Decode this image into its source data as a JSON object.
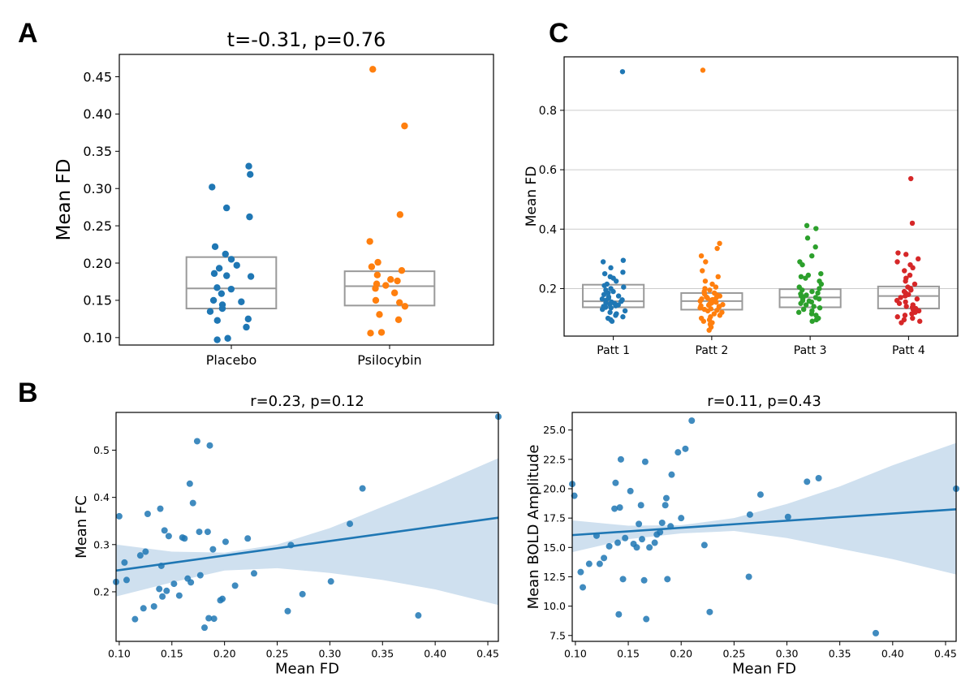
{
  "panels": {
    "A": "A",
    "B": "B",
    "C": "C"
  },
  "colors": {
    "blue": "#1f77b4",
    "orange": "#ff7f0e",
    "green": "#2ca02c",
    "red": "#d62728",
    "box": "#9a9a9a",
    "grid": "#cccccc",
    "ci_band": "#cfe0ef"
  },
  "chart_data": [
    {
      "id": "A",
      "type": "box-strip",
      "title": "t=-0.31, p=0.76",
      "xlabel": "",
      "ylabel": "Mean FD",
      "ylim": [
        0.09,
        0.48
      ],
      "yticks": [
        "0.10",
        "0.15",
        "0.20",
        "0.25",
        "0.30",
        "0.35",
        "0.40",
        "0.45"
      ],
      "categories": [
        "Placebo",
        "Psilocybin"
      ],
      "grid": false,
      "boxes": [
        {
          "q1": 0.139,
          "median": 0.166,
          "q3": 0.208
        },
        {
          "q1": 0.143,
          "median": 0.169,
          "q3": 0.189
        }
      ],
      "series": [
        {
          "values": [
            0.33,
            0.319,
            0.302,
            0.274,
            0.262,
            0.222,
            0.212,
            0.205,
            0.197,
            0.193,
            0.186,
            0.182,
            0.183,
            0.167,
            0.165,
            0.159,
            0.15,
            0.148,
            0.144,
            0.139,
            0.135,
            0.125,
            0.123,
            0.114,
            0.099,
            0.097
          ]
        },
        {
          "values": [
            0.46,
            0.384,
            0.265,
            0.229,
            0.201,
            0.195,
            0.19,
            0.184,
            0.178,
            0.176,
            0.172,
            0.17,
            0.166,
            0.16,
            0.15,
            0.147,
            0.142,
            0.131,
            0.124,
            0.107,
            0.106
          ]
        }
      ]
    },
    {
      "id": "C",
      "type": "box-strip",
      "title": "",
      "xlabel": "",
      "ylabel": "Mean FD",
      "ylim": [
        0.04,
        0.98
      ],
      "yticks": [
        "0.2",
        "0.4",
        "0.6",
        "0.8"
      ],
      "categories": [
        "Patt 1",
        "Patt 2",
        "Patt 3",
        "Patt 4"
      ],
      "grid": true,
      "boxes": [
        {
          "q1": 0.137,
          "median": 0.157,
          "q3": 0.213
        },
        {
          "q1": 0.129,
          "median": 0.158,
          "q3": 0.185
        },
        {
          "q1": 0.137,
          "median": 0.17,
          "q3": 0.198
        },
        {
          "q1": 0.133,
          "median": 0.175,
          "q3": 0.207
        }
      ],
      "series": [
        {
          "values": [
            0.93,
            0.295,
            0.29,
            0.27,
            0.255,
            0.25,
            0.24,
            0.235,
            0.225,
            0.215,
            0.21,
            0.205,
            0.2,
            0.195,
            0.19,
            0.185,
            0.18,
            0.175,
            0.172,
            0.168,
            0.165,
            0.162,
            0.16,
            0.157,
            0.155,
            0.152,
            0.15,
            0.147,
            0.145,
            0.142,
            0.14,
            0.137,
            0.135,
            0.13,
            0.125,
            0.12,
            0.115,
            0.11,
            0.105,
            0.1,
            0.095,
            0.09
          ]
        },
        {
          "values": [
            0.935,
            0.352,
            0.335,
            0.31,
            0.29,
            0.26,
            0.24,
            0.225,
            0.215,
            0.205,
            0.2,
            0.195,
            0.19,
            0.185,
            0.182,
            0.178,
            0.175,
            0.172,
            0.17,
            0.168,
            0.165,
            0.163,
            0.16,
            0.158,
            0.156,
            0.154,
            0.152,
            0.15,
            0.148,
            0.146,
            0.144,
            0.142,
            0.14,
            0.138,
            0.135,
            0.132,
            0.13,
            0.127,
            0.125,
            0.12,
            0.115,
            0.11,
            0.105,
            0.1,
            0.095,
            0.09,
            0.085,
            0.08,
            0.07,
            0.06
          ]
        },
        {
          "values": [
            0.412,
            0.402,
            0.37,
            0.34,
            0.31,
            0.29,
            0.28,
            0.25,
            0.245,
            0.24,
            0.235,
            0.225,
            0.215,
            0.205,
            0.2,
            0.195,
            0.19,
            0.185,
            0.182,
            0.178,
            0.175,
            0.172,
            0.17,
            0.167,
            0.165,
            0.16,
            0.158,
            0.155,
            0.15,
            0.145,
            0.14,
            0.135,
            0.13,
            0.125,
            0.12,
            0.115,
            0.11,
            0.1,
            0.095,
            0.09
          ]
        },
        {
          "values": [
            0.57,
            0.42,
            0.32,
            0.315,
            0.3,
            0.29,
            0.28,
            0.27,
            0.26,
            0.245,
            0.235,
            0.225,
            0.215,
            0.205,
            0.2,
            0.195,
            0.19,
            0.185,
            0.18,
            0.175,
            0.17,
            0.165,
            0.16,
            0.155,
            0.15,
            0.145,
            0.14,
            0.137,
            0.133,
            0.13,
            0.125,
            0.12,
            0.115,
            0.11,
            0.105,
            0.1,
            0.095,
            0.09,
            0.085
          ]
        }
      ]
    },
    {
      "id": "B1",
      "type": "scatter",
      "title": "r=0.23, p=0.12",
      "xlabel": "Mean FD",
      "ylabel": "Mean FC",
      "xlim": [
        0.097,
        0.46
      ],
      "ylim": [
        0.095,
        0.58
      ],
      "xticks": [
        "0.10",
        "0.15",
        "0.20",
        "0.25",
        "0.30",
        "0.35",
        "0.40",
        "0.45"
      ],
      "yticks": [
        "0.2",
        "0.3",
        "0.4",
        "0.5"
      ],
      "regression": {
        "y_at_xmin": 0.245,
        "y_at_xmax": 0.357
      },
      "ci_upper": [
        [
          0.097,
          0.3
        ],
        [
          0.15,
          0.285
        ],
        [
          0.2,
          0.283
        ],
        [
          0.25,
          0.3
        ],
        [
          0.3,
          0.335
        ],
        [
          0.35,
          0.38
        ],
        [
          0.4,
          0.425
        ],
        [
          0.46,
          0.483
        ]
      ],
      "ci_lower": [
        [
          0.097,
          0.19
        ],
        [
          0.15,
          0.22
        ],
        [
          0.2,
          0.245
        ],
        [
          0.25,
          0.25
        ],
        [
          0.3,
          0.24
        ],
        [
          0.35,
          0.225
        ],
        [
          0.4,
          0.205
        ],
        [
          0.46,
          0.172
        ]
      ],
      "points": [
        [
          0.097,
          0.221
        ],
        [
          0.1,
          0.36
        ],
        [
          0.105,
          0.262
        ],
        [
          0.107,
          0.225
        ],
        [
          0.115,
          0.142
        ],
        [
          0.12,
          0.277
        ],
        [
          0.123,
          0.165
        ],
        [
          0.125,
          0.285
        ],
        [
          0.127,
          0.365
        ],
        [
          0.133,
          0.169
        ],
        [
          0.138,
          0.206
        ],
        [
          0.139,
          0.376
        ],
        [
          0.14,
          0.255
        ],
        [
          0.141,
          0.19
        ],
        [
          0.143,
          0.33
        ],
        [
          0.145,
          0.202
        ],
        [
          0.147,
          0.318
        ],
        [
          0.152,
          0.217
        ],
        [
          0.157,
          0.192
        ],
        [
          0.16,
          0.315
        ],
        [
          0.162,
          0.313
        ],
        [
          0.165,
          0.228
        ],
        [
          0.167,
          0.429
        ],
        [
          0.168,
          0.22
        ],
        [
          0.17,
          0.388
        ],
        [
          0.174,
          0.519
        ],
        [
          0.176,
          0.327
        ],
        [
          0.177,
          0.235
        ],
        [
          0.181,
          0.124
        ],
        [
          0.184,
          0.327
        ],
        [
          0.185,
          0.144
        ],
        [
          0.186,
          0.51
        ],
        [
          0.189,
          0.29
        ],
        [
          0.19,
          0.143
        ],
        [
          0.196,
          0.182
        ],
        [
          0.198,
          0.185
        ],
        [
          0.201,
          0.306
        ],
        [
          0.21,
          0.213
        ],
        [
          0.222,
          0.313
        ],
        [
          0.228,
          0.239
        ],
        [
          0.26,
          0.159
        ],
        [
          0.263,
          0.299
        ],
        [
          0.274,
          0.195
        ],
        [
          0.301,
          0.222
        ],
        [
          0.319,
          0.344
        ],
        [
          0.331,
          0.419
        ],
        [
          0.384,
          0.15
        ],
        [
          0.46,
          0.571
        ]
      ]
    },
    {
      "id": "B2",
      "type": "scatter",
      "title": "r=0.11, p=0.43",
      "xlabel": "Mean FD",
      "ylabel": "Mean BOLD Amplitude",
      "xlim": [
        0.097,
        0.46
      ],
      "ylim": [
        7.0,
        26.5
      ],
      "xticks": [
        "0.10",
        "0.15",
        "0.20",
        "0.25",
        "0.30",
        "0.35",
        "0.40",
        "0.45"
      ],
      "yticks": [
        "7.5",
        "10.0",
        "12.5",
        "15.0",
        "17.5",
        "20.0",
        "22.5",
        "25.0"
      ],
      "regression": {
        "y_at_xmin": 16.05,
        "y_at_xmax": 18.25
      },
      "ci_upper": [
        [
          0.097,
          17.3
        ],
        [
          0.15,
          16.85
        ],
        [
          0.2,
          16.9
        ],
        [
          0.25,
          17.5
        ],
        [
          0.3,
          18.7
        ],
        [
          0.35,
          20.2
        ],
        [
          0.4,
          22.0
        ],
        [
          0.46,
          23.9
        ]
      ],
      "ci_lower": [
        [
          0.097,
          14.6
        ],
        [
          0.15,
          15.7
        ],
        [
          0.2,
          16.2
        ],
        [
          0.25,
          16.4
        ],
        [
          0.3,
          15.8
        ],
        [
          0.35,
          14.9
        ],
        [
          0.4,
          14.0
        ],
        [
          0.46,
          12.7
        ]
      ],
      "points": [
        [
          0.097,
          20.4
        ],
        [
          0.099,
          19.4
        ],
        [
          0.105,
          12.9
        ],
        [
          0.107,
          11.6
        ],
        [
          0.113,
          13.6
        ],
        [
          0.12,
          16.0
        ],
        [
          0.123,
          13.6
        ],
        [
          0.127,
          14.1
        ],
        [
          0.132,
          15.1
        ],
        [
          0.137,
          18.3
        ],
        [
          0.138,
          20.5
        ],
        [
          0.14,
          15.4
        ],
        [
          0.141,
          9.3
        ],
        [
          0.142,
          18.4
        ],
        [
          0.143,
          22.5
        ],
        [
          0.145,
          12.3
        ],
        [
          0.147,
          15.8
        ],
        [
          0.152,
          19.8
        ],
        [
          0.155,
          15.3
        ],
        [
          0.158,
          15.0
        ],
        [
          0.16,
          17.0
        ],
        [
          0.162,
          18.6
        ],
        [
          0.163,
          15.7
        ],
        [
          0.165,
          12.2
        ],
        [
          0.166,
          22.3
        ],
        [
          0.167,
          8.9
        ],
        [
          0.17,
          15.0
        ],
        [
          0.175,
          15.4
        ],
        [
          0.177,
          16.1
        ],
        [
          0.18,
          16.3
        ],
        [
          0.182,
          17.1
        ],
        [
          0.185,
          18.6
        ],
        [
          0.186,
          19.2
        ],
        [
          0.187,
          12.3
        ],
        [
          0.19,
          16.8
        ],
        [
          0.191,
          21.2
        ],
        [
          0.197,
          23.1
        ],
        [
          0.2,
          17.5
        ],
        [
          0.204,
          23.4
        ],
        [
          0.21,
          25.8
        ],
        [
          0.222,
          15.2
        ],
        [
          0.227,
          9.5
        ],
        [
          0.264,
          12.5
        ],
        [
          0.265,
          17.8
        ],
        [
          0.275,
          19.5
        ],
        [
          0.301,
          17.6
        ],
        [
          0.319,
          20.6
        ],
        [
          0.33,
          20.9
        ],
        [
          0.384,
          7.7
        ],
        [
          0.46,
          20.0
        ]
      ]
    }
  ]
}
